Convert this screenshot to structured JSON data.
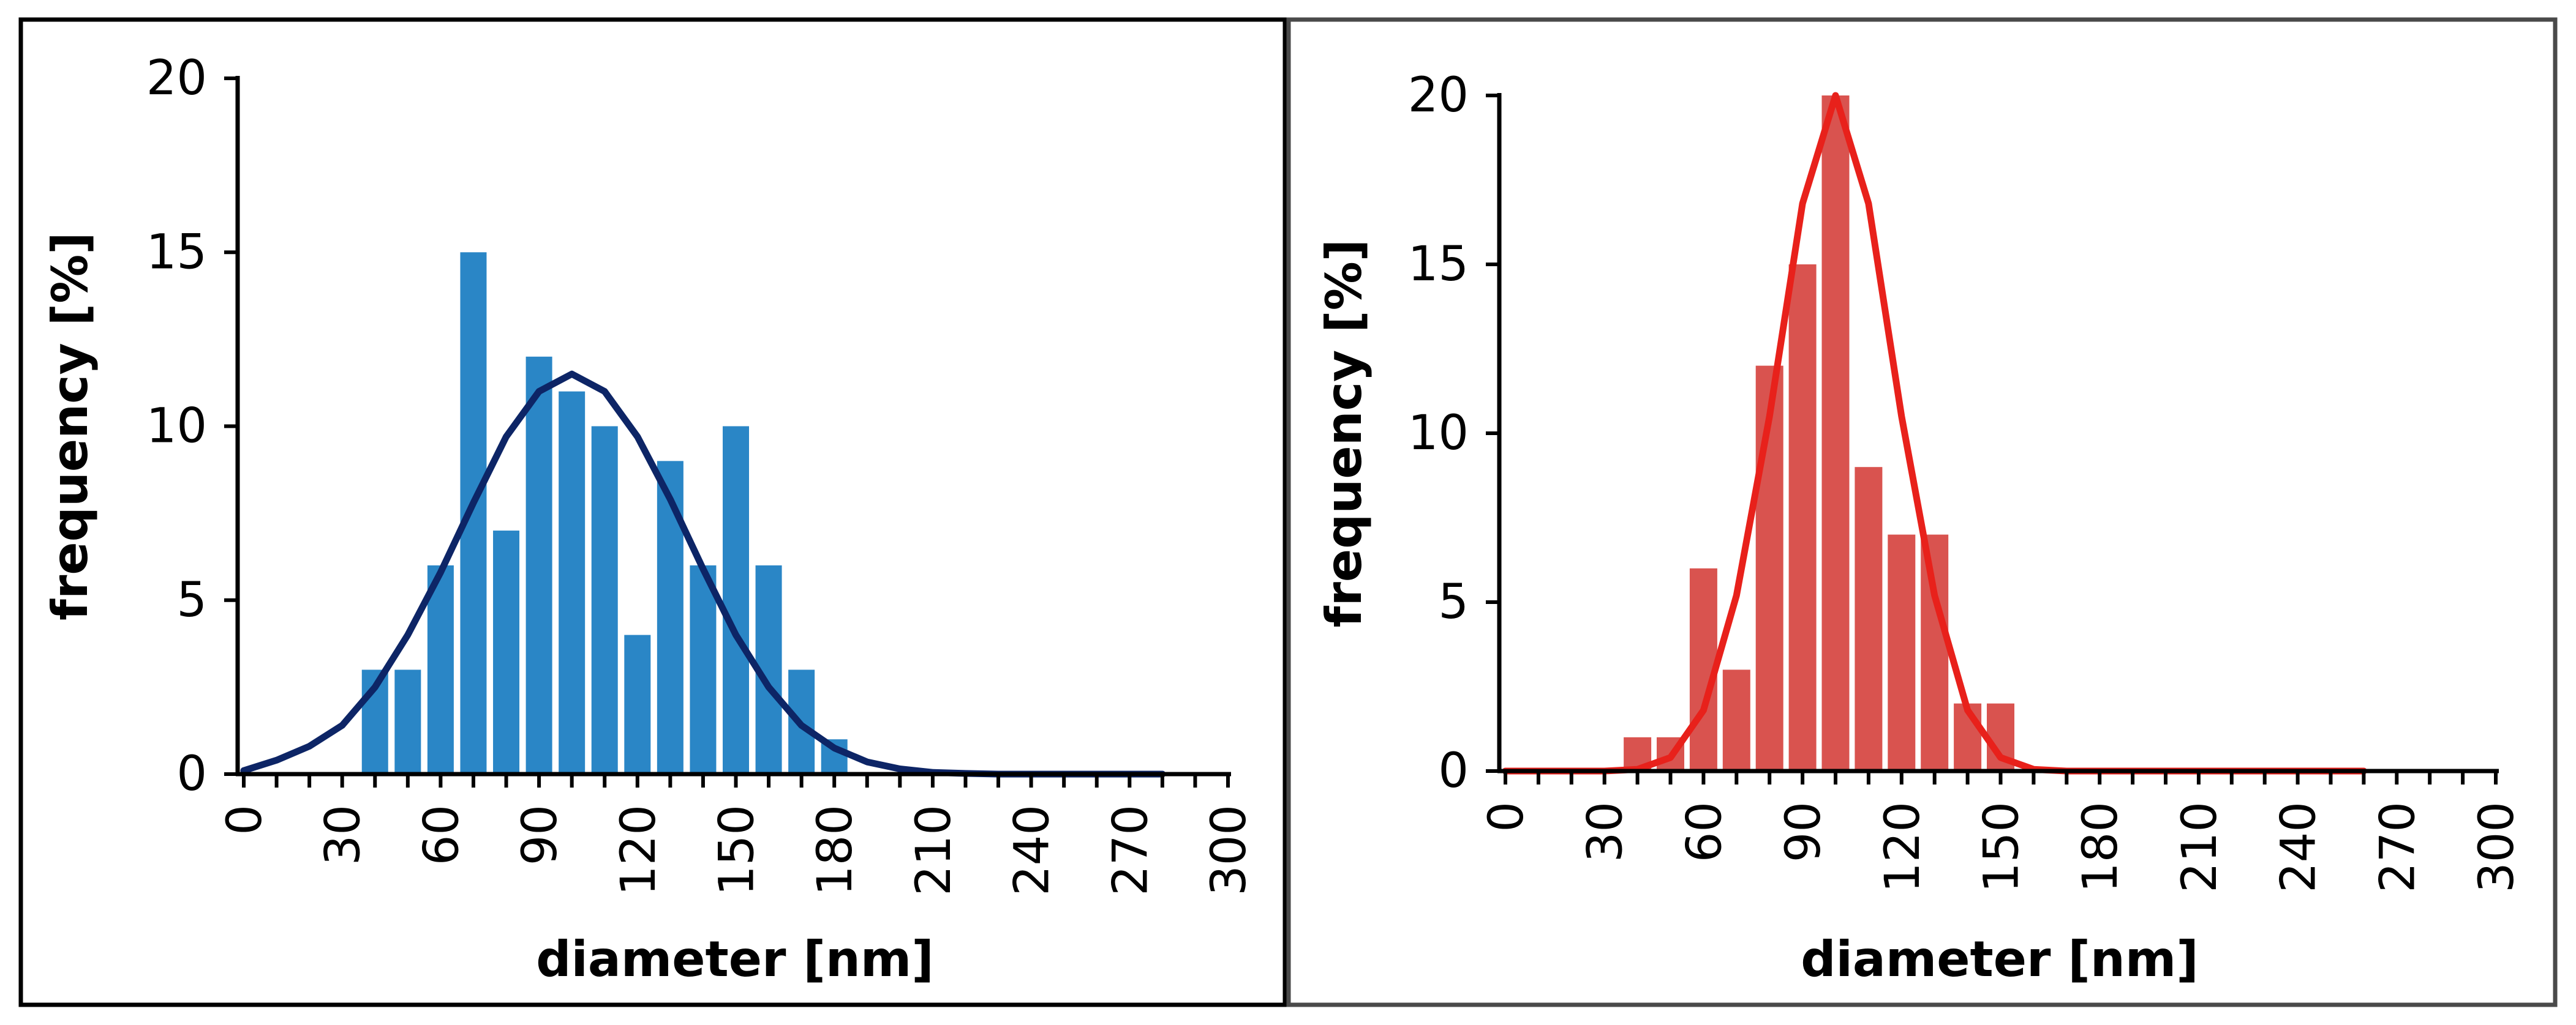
{
  "chart_data": [
    {
      "type": "bar",
      "title": "",
      "xlabel": "diameter [nm]",
      "ylabel": "frequency [%]",
      "xlim": [
        0,
        300
      ],
      "ylim": [
        0,
        20
      ],
      "xticks": [
        0,
        30,
        60,
        90,
        120,
        150,
        180,
        210,
        240,
        270,
        300
      ],
      "yticks": [
        0,
        5,
        10,
        15,
        20
      ],
      "bar_color": "#2a86c6",
      "line_color": "#0d2566",
      "grid": false,
      "bars": {
        "x": [
          40,
          50,
          60,
          70,
          80,
          90,
          100,
          110,
          120,
          130,
          140,
          150,
          160,
          170,
          180
        ],
        "values": [
          3,
          3,
          6,
          15,
          7,
          12,
          11,
          10,
          4,
          9,
          6,
          10,
          6,
          3,
          1
        ]
      },
      "fit": {
        "x": [
          0,
          10,
          20,
          30,
          40,
          50,
          60,
          70,
          80,
          90,
          100,
          110,
          120,
          130,
          140,
          150,
          160,
          170,
          180,
          190,
          200,
          210,
          220,
          230,
          240,
          250,
          260,
          270,
          280
        ],
        "y": [
          0.1,
          0.4,
          0.8,
          1.4,
          2.5,
          4.0,
          5.8,
          7.8,
          9.7,
          11.0,
          11.5,
          11.0,
          9.7,
          7.9,
          5.9,
          4.0,
          2.5,
          1.4,
          0.75,
          0.35,
          0.15,
          0.05,
          0.02,
          0,
          0,
          0,
          0,
          0,
          0
        ]
      }
    },
    {
      "type": "bar",
      "title": "",
      "xlabel": "diameter [nm]",
      "ylabel": "frequency [%]",
      "xlim": [
        0,
        300
      ],
      "ylim": [
        0,
        20
      ],
      "xticks": [
        0,
        30,
        60,
        90,
        120,
        150,
        180,
        210,
        240,
        270,
        300
      ],
      "yticks": [
        0,
        5,
        10,
        15,
        20
      ],
      "bar_color": "#d9534f",
      "line_color": "#e8211b",
      "grid": false,
      "bars": {
        "x": [
          40,
          50,
          60,
          70,
          80,
          90,
          100,
          110,
          120,
          130,
          140,
          150
        ],
        "values": [
          1,
          1,
          6,
          3,
          12,
          15,
          20,
          9,
          7,
          7,
          2,
          2
        ]
      },
      "fit": {
        "x": [
          0,
          10,
          20,
          30,
          40,
          50,
          60,
          70,
          80,
          90,
          100,
          110,
          120,
          130,
          140,
          150,
          160,
          170,
          180,
          190,
          200,
          210,
          220,
          230,
          240,
          250,
          260
        ],
        "y": [
          0,
          0,
          0,
          0,
          0.05,
          0.4,
          1.8,
          5.2,
          10.5,
          16.8,
          20.0,
          16.8,
          10.5,
          5.2,
          1.8,
          0.4,
          0.05,
          0,
          0,
          0,
          0,
          0,
          0,
          0,
          0,
          0,
          0
        ]
      }
    }
  ]
}
